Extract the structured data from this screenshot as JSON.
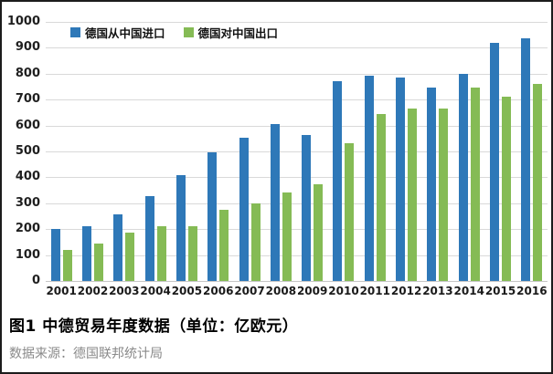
{
  "figure": {
    "title": "图1 中德贸易年度数据（单位：亿欧元）",
    "source": "数据来源：德国联邦统计局"
  },
  "chart_data": {
    "type": "bar",
    "title": "图1 中德贸易年度数据（单位：亿欧元）",
    "source": "数据来源：德国联邦统计局",
    "categories": [
      "2001",
      "2002",
      "2003",
      "2004",
      "2005",
      "2006",
      "2007",
      "2008",
      "2009",
      "2010",
      "2011",
      "2012",
      "2013",
      "2014",
      "2015",
      "2016"
    ],
    "series": [
      {
        "name": "德国从中国进口",
        "color": "#2e78b8",
        "values": [
          199,
          212,
          257,
          328,
          409,
          495,
          554,
          607,
          565,
          770,
          794,
          786,
          745,
          798,
          918,
          936
        ]
      },
      {
        "name": "德国对中国出口",
        "color": "#85bb55",
        "values": [
          121,
          143,
          185,
          210,
          213,
          276,
          299,
          341,
          372,
          531,
          645,
          666,
          667,
          745,
          711,
          760
        ]
      }
    ],
    "ylim": [
      0,
      1000
    ],
    "yticks": [
      0,
      100,
      200,
      300,
      400,
      500,
      600,
      700,
      800,
      900,
      1000
    ],
    "grid": true,
    "gridline_color": "#d9d9d9",
    "legend_position": "top"
  }
}
